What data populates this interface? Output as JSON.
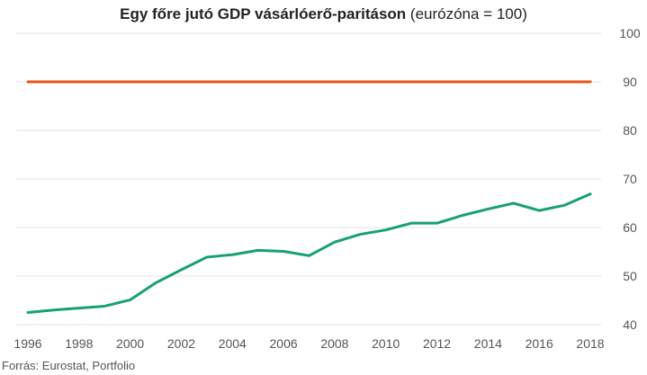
{
  "title": {
    "bold": "Egy főre jutó GDP vásárlóerő-paritáson",
    "normal": "(eurózóna = 100)"
  },
  "source": "Forrás: Eurostat, Portfolio",
  "colors": {
    "reference_line": "#e8561a",
    "series_line": "#17a075",
    "grid": "#e3e3e3",
    "tick_text": "#555555"
  },
  "chart_data": {
    "type": "line",
    "title": "Egy főre jutó GDP vásárlóerő-paritáson (eurózóna = 100)",
    "xlabel": "",
    "ylabel": "",
    "xlim": [
      1996,
      2018
    ],
    "ylim": [
      40,
      100
    ],
    "x_ticks": [
      "1996",
      "1998",
      "2000",
      "2002",
      "2004",
      "2006",
      "2008",
      "2010",
      "2012",
      "2014",
      "2016",
      "2018"
    ],
    "y_ticks": [
      "40",
      "50",
      "60",
      "70",
      "80",
      "90",
      "100"
    ],
    "y_axis_side": "right",
    "grid": "horizontal",
    "legend": "none",
    "x": [
      1996,
      1997,
      1998,
      1999,
      2000,
      2001,
      2002,
      2003,
      2004,
      2005,
      2006,
      2007,
      2008,
      2009,
      2010,
      2011,
      2012,
      2013,
      2014,
      2015,
      2016,
      2017,
      2018
    ],
    "series": [
      {
        "values": [
          42.5,
          43.0,
          43.4,
          43.8,
          45.1,
          48.6,
          51.3,
          53.9,
          54.4,
          55.3,
          55.1,
          54.2,
          57.0,
          58.6,
          59.5,
          60.9,
          60.9,
          62.5,
          63.8,
          65.0,
          63.5,
          64.6,
          66.9
        ]
      },
      {
        "values": [
          90,
          90,
          90,
          90,
          90,
          90,
          90,
          90,
          90,
          90,
          90,
          90,
          90,
          90,
          90,
          90,
          90,
          90,
          90,
          90,
          90,
          90,
          90
        ]
      }
    ]
  }
}
